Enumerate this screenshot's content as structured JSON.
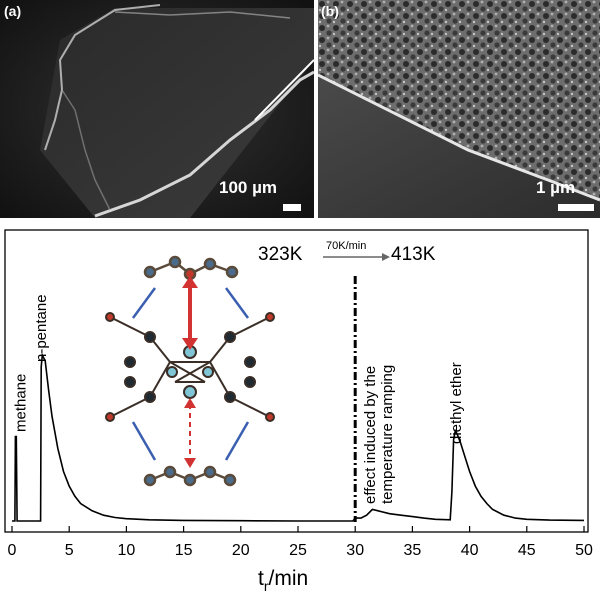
{
  "figure": {
    "panel_a": {
      "label": "(a)",
      "scale_text": "100 µm"
    },
    "panel_b": {
      "label": "(b)",
      "scale_text": "1 µm"
    }
  },
  "chart_data": {
    "type": "line",
    "xlabel": "t",
    "xlabel_sub": "r",
    "xlabel_unit": "/min",
    "ylabel": "",
    "xlim": [
      0,
      50
    ],
    "x_ticks": [
      0,
      5,
      10,
      15,
      20,
      25,
      30,
      35,
      40,
      45,
      50
    ],
    "grid": false,
    "temperature_ramp": {
      "start": "323K",
      "rate": "70K/min",
      "end": "413K"
    },
    "peak_labels": [
      {
        "text": "methane",
        "x": 0.4
      },
      {
        "text": "n-pentane",
        "x": 2.7
      },
      {
        "text": "diethyl ether",
        "x": 38.8
      }
    ],
    "annotation": {
      "line1": "effect induced by the",
      "line2": "temperature ramping",
      "x": 30.0
    },
    "series": [
      {
        "points": [
          [
            0,
            0
          ],
          [
            0.25,
            0
          ],
          [
            0.3,
            0.29
          ],
          [
            0.38,
            0.29
          ],
          [
            0.45,
            0
          ],
          [
            2.5,
            0
          ],
          [
            2.55,
            0.53
          ],
          [
            2.65,
            0.57
          ],
          [
            2.9,
            0.55
          ],
          [
            3.2,
            0.45
          ],
          [
            3.5,
            0.36
          ],
          [
            4.0,
            0.25
          ],
          [
            4.5,
            0.17
          ],
          [
            5.0,
            0.12
          ],
          [
            5.5,
            0.085
          ],
          [
            6.0,
            0.06
          ],
          [
            7.0,
            0.035
          ],
          [
            8.0,
            0.02
          ],
          [
            9.0,
            0.012
          ],
          [
            10.0,
            0.008
          ],
          [
            12.0,
            0.004
          ],
          [
            15.0,
            0.002
          ],
          [
            20.0,
            0.001
          ],
          [
            25.0,
            0.0
          ],
          [
            29.8,
            0.0
          ],
          [
            30.0,
            0.01
          ],
          [
            30.5,
            0.01
          ],
          [
            31.0,
            0.02
          ],
          [
            31.5,
            0.04
          ],
          [
            32.0,
            0.035
          ],
          [
            33.0,
            0.025
          ],
          [
            34.0,
            0.02
          ],
          [
            35.0,
            0.015
          ],
          [
            36.0,
            0.01
          ],
          [
            37.0,
            0.006
          ],
          [
            38.3,
            0.004
          ],
          [
            38.45,
            0.1
          ],
          [
            38.6,
            0.28
          ],
          [
            38.75,
            0.31
          ],
          [
            38.9,
            0.3
          ],
          [
            39.2,
            0.27
          ],
          [
            39.6,
            0.22
          ],
          [
            40.0,
            0.17
          ],
          [
            40.5,
            0.12
          ],
          [
            41.0,
            0.085
          ],
          [
            41.5,
            0.06
          ],
          [
            42.0,
            0.04
          ],
          [
            43.0,
            0.02
          ],
          [
            44.0,
            0.01
          ],
          [
            45.0,
            0.006
          ],
          [
            47.0,
            0.003
          ],
          [
            50.0,
            0.002
          ]
        ]
      }
    ]
  }
}
